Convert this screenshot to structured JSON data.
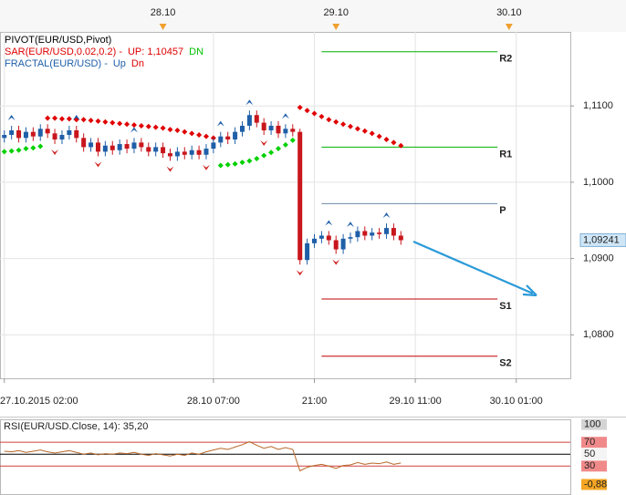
{
  "chart_data": [
    {
      "type": "candlestick",
      "legend": [
        [
          {
            "text": "PIVOT(EUR/USD,Pivot)",
            "color": "#000000"
          }
        ],
        [
          {
            "text": "SAR(EUR/USD,0.02,0.2)  -",
            "color": "#e00000"
          },
          {
            "text": "UP: 1,10457",
            "color": "#e00000"
          },
          {
            "text": "DN",
            "color": "#00c000"
          }
        ],
        [
          {
            "text": "FRACTAL(EUR/USD)  -",
            "color": "#1f5fa8"
          },
          {
            "text": "Up",
            "color": "#1f5fa8"
          },
          {
            "text": "Dn",
            "color": "#e00000"
          }
        ]
      ],
      "x": [
        0,
        1,
        2,
        3,
        4,
        5,
        6,
        7,
        8,
        9,
        10,
        11,
        12,
        13,
        14,
        15,
        16,
        17,
        18,
        19,
        20,
        21,
        22,
        23,
        24,
        25,
        26,
        27,
        28,
        29,
        30,
        31,
        32,
        33,
        34,
        35,
        36,
        37,
        38,
        39,
        40,
        41,
        42,
        43,
        44,
        45,
        46,
        47,
        48,
        49,
        50,
        51,
        52,
        53,
        54,
        55
      ],
      "open": [
        1.1058,
        1.1062,
        1.1068,
        1.1058,
        1.1066,
        1.106,
        1.107,
        1.1064,
        1.1056,
        1.1062,
        1.1068,
        1.1058,
        1.1046,
        1.1052,
        1.104,
        1.1048,
        1.1042,
        1.105,
        1.1044,
        1.1052,
        1.1046,
        1.104,
        1.1046,
        1.1038,
        1.1034,
        1.104,
        1.1036,
        1.1042,
        1.1036,
        1.1044,
        1.1052,
        1.106,
        1.1056,
        1.1066,
        1.1074,
        1.1088,
        1.1078,
        1.1068,
        1.1074,
        1.1064,
        1.107,
        1.1066,
        1.0898,
        1.092,
        1.0926,
        1.093,
        1.0924,
        1.0912,
        1.0926,
        1.0928,
        1.0936,
        1.093,
        1.0934,
        1.0932,
        1.094,
        1.093
      ],
      "high": [
        1.1068,
        1.1074,
        1.1074,
        1.1072,
        1.1072,
        1.1076,
        1.1076,
        1.107,
        1.1068,
        1.1074,
        1.1074,
        1.1064,
        1.1058,
        1.1058,
        1.1054,
        1.1054,
        1.1056,
        1.1056,
        1.1058,
        1.1058,
        1.1052,
        1.1052,
        1.1052,
        1.1044,
        1.1046,
        1.1046,
        1.1048,
        1.1048,
        1.105,
        1.1058,
        1.1066,
        1.1066,
        1.1072,
        1.108,
        1.1094,
        1.1094,
        1.1084,
        1.108,
        1.108,
        1.1076,
        1.1076,
        1.107,
        1.0926,
        1.0932,
        1.0936,
        1.0936,
        1.093,
        1.0932,
        1.0934,
        1.0942,
        1.0942,
        1.094,
        1.094,
        1.0946,
        1.0946,
        1.0936
      ],
      "low": [
        1.1052,
        1.1056,
        1.1052,
        1.1052,
        1.1054,
        1.1054,
        1.1058,
        1.105,
        1.105,
        1.1056,
        1.1052,
        1.104,
        1.104,
        1.1034,
        1.1034,
        1.1036,
        1.1036,
        1.1038,
        1.1038,
        1.104,
        1.1034,
        1.1034,
        1.1032,
        1.1028,
        1.1028,
        1.103,
        1.103,
        1.103,
        1.103,
        1.1038,
        1.1046,
        1.105,
        1.105,
        1.106,
        1.1068,
        1.1072,
        1.1062,
        1.1062,
        1.1058,
        1.1058,
        1.106,
        1.0892,
        1.0892,
        1.0914,
        1.092,
        1.0918,
        1.0906,
        1.0906,
        1.092,
        1.0922,
        1.0924,
        1.0924,
        1.0926,
        1.0926,
        1.0924,
        1.0918
      ],
      "close": [
        1.1062,
        1.1068,
        1.1058,
        1.1066,
        1.106,
        1.107,
        1.1064,
        1.1056,
        1.1062,
        1.1068,
        1.1058,
        1.1046,
        1.1052,
        1.104,
        1.1048,
        1.1042,
        1.105,
        1.1044,
        1.1052,
        1.1046,
        1.104,
        1.1046,
        1.1038,
        1.1034,
        1.104,
        1.1036,
        1.1042,
        1.1036,
        1.1044,
        1.1052,
        1.106,
        1.1056,
        1.1066,
        1.1074,
        1.1088,
        1.1078,
        1.1068,
        1.1074,
        1.1064,
        1.107,
        1.1066,
        1.0898,
        1.092,
        1.0926,
        1.093,
        1.0924,
        1.0912,
        1.0926,
        1.0928,
        1.0936,
        1.093,
        1.0934,
        1.0932,
        1.094,
        1.093,
        1.0924
      ],
      "up_color": "#1f5fa8",
      "down_color": "#c8161c",
      "sar_above": [
        null,
        null,
        null,
        null,
        null,
        null,
        1.1084,
        1.1084,
        1.1083,
        1.1083,
        1.1082,
        1.1082,
        1.1081,
        1.108,
        1.1079,
        1.1078,
        1.1077,
        1.1076,
        1.1075,
        1.1074,
        1.1073,
        1.1072,
        1.1071,
        1.1069,
        1.1068,
        1.1066,
        1.1064,
        1.1062,
        1.106,
        1.1058,
        null,
        null,
        null,
        null,
        null,
        null,
        null,
        null,
        null,
        null,
        null,
        1.1098,
        1.1094,
        1.109,
        1.1086,
        1.1082,
        1.1079,
        1.1076,
        1.1073,
        1.107,
        1.1067,
        1.1064,
        1.106,
        1.1056,
        1.1052,
        1.1048
      ],
      "sar_below": [
        1.104,
        1.1041,
        1.1042,
        1.1044,
        1.1045,
        1.1047,
        null,
        null,
        null,
        null,
        null,
        null,
        null,
        null,
        null,
        null,
        null,
        null,
        null,
        null,
        null,
        null,
        null,
        null,
        null,
        null,
        null,
        null,
        null,
        null,
        1.1022,
        1.1023,
        1.1024,
        1.1026,
        1.1028,
        1.1031,
        1.1035,
        1.1039,
        1.1044,
        1.1049,
        1.1055,
        null,
        null,
        null,
        null,
        null,
        null,
        null,
        null,
        null,
        null,
        null,
        null,
        null,
        null,
        null
      ],
      "sar_above_color": "#e00000",
      "sar_below_color": "#00d000",
      "fractal_up": {
        "x": [
          1,
          10,
          18,
          30,
          34,
          39,
          45,
          48,
          53
        ],
        "values": [
          1.1074,
          1.1074,
          1.1058,
          1.1066,
          1.1094,
          1.1076,
          1.0936,
          1.0934,
          1.0946
        ],
        "color": "#1f5fa8"
      },
      "fractal_down": {
        "x": [
          7,
          13,
          23,
          28,
          36,
          41,
          46
        ],
        "values": [
          1.105,
          1.1034,
          1.1028,
          1.103,
          1.1062,
          1.0892,
          1.0906
        ],
        "color": "#d02020"
      },
      "pivots": [
        {
          "label": "R2",
          "value": 1.1171,
          "color": "#00b000"
        },
        {
          "label": "R1",
          "value": 1.1046,
          "color": "#00b000"
        },
        {
          "label": "P",
          "value": 1.0972,
          "color": "#6a88a8"
        },
        {
          "label": "S1",
          "value": 1.0847,
          "color": "#c00000"
        },
        {
          "label": "S2",
          "value": 1.0772,
          "color": "#c00000"
        }
      ],
      "last_price": {
        "value": 1.09241,
        "label": "1,09241"
      },
      "xlim": [
        -0.6,
        78.5
      ],
      "ylim": [
        1.0743,
        1.1197
      ],
      "yticks": [
        {
          "value": 1.08,
          "label": "1,0800"
        },
        {
          "value": 1.09,
          "label": "1,0900"
        },
        {
          "value": 1.1,
          "label": "1,1000"
        },
        {
          "value": 1.11,
          "label": "1,1100"
        }
      ],
      "xticks": [
        {
          "value": 0,
          "label": "27.10.2015 02:00"
        },
        {
          "value": 29,
          "label": "28.10 07:00"
        },
        {
          "value": 43,
          "label": "21:00"
        },
        {
          "value": 57,
          "label": "29.10 11:00"
        },
        {
          "value": 71,
          "label": "30.10 01:00"
        }
      ],
      "top_xticks": [
        {
          "value": 22,
          "label": "28.10"
        },
        {
          "value": 46,
          "label": "29.10"
        },
        {
          "value": 70,
          "label": "30.10"
        }
      ],
      "grid": true
    },
    {
      "type": "line",
      "title": "RSI(EUR/USD.Close, 14): 35,20",
      "title_color": "#e00000",
      "x": [
        0,
        1,
        2,
        3,
        4,
        5,
        6,
        7,
        8,
        9,
        10,
        11,
        12,
        13,
        14,
        15,
        16,
        17,
        18,
        19,
        20,
        21,
        22,
        23,
        24,
        25,
        26,
        27,
        28,
        29,
        30,
        31,
        32,
        33,
        34,
        35,
        36,
        37,
        38,
        39,
        40,
        41,
        42,
        43,
        44,
        45,
        46,
        47,
        48,
        49,
        50,
        51,
        52,
        53,
        54,
        55
      ],
      "values": [
        55,
        54,
        56,
        53,
        55,
        57,
        54,
        52,
        54,
        56,
        53,
        50,
        52,
        49,
        51,
        50,
        52,
        51,
        53,
        50,
        48,
        51,
        49,
        47,
        50,
        48,
        52,
        50,
        54,
        57,
        60,
        58,
        62,
        66,
        71,
        65,
        60,
        63,
        58,
        61,
        58,
        22,
        28,
        31,
        33,
        30,
        26,
        31,
        32,
        36,
        33,
        35,
        34,
        37,
        33,
        35.2
      ],
      "color": "#b8682a",
      "xlim": [
        -0.6,
        78.5
      ],
      "ylim": [
        -18.6,
        108.6
      ],
      "yticks": [
        100,
        70,
        50,
        30,
        {
          "value": -0.88,
          "label": "-0,88"
        }
      ],
      "ytick_backgrounds": [
        "#d4d4d4",
        "#f08a8a",
        "#f4f4f4",
        "#f08a8a",
        "#f5a623"
      ],
      "ytick_lines": [
        "none",
        "#d04040",
        "#000000",
        "#d04040",
        "none"
      ]
    }
  ]
}
